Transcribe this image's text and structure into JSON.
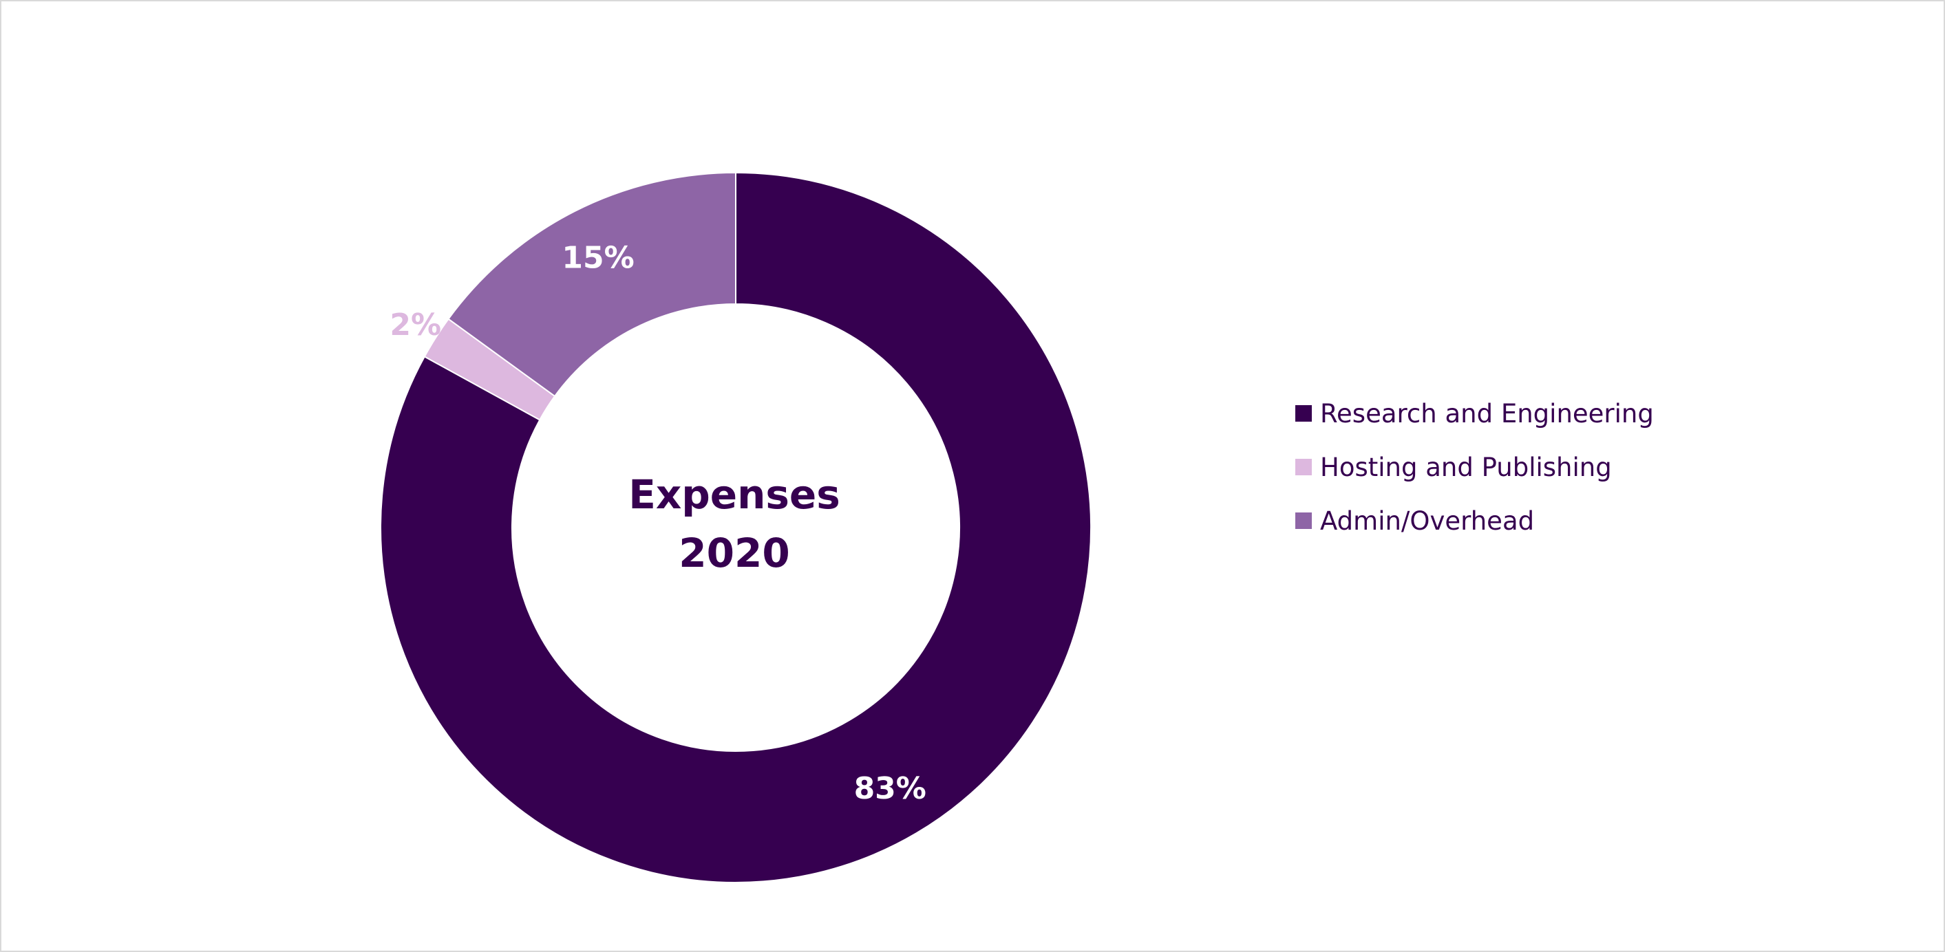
{
  "colors": {
    "text": "#360050",
    "research": "#360050",
    "hosting": "#ddb8df",
    "admin": "#8e65a6"
  },
  "chart_data": {
    "type": "pie",
    "style": "donut",
    "title_lines": [
      "Expenses",
      "2020"
    ],
    "slices": [
      {
        "name": "Research and Engineering",
        "value": 83,
        "label": "83%",
        "color": "#360050",
        "label_color": "#ffffff"
      },
      {
        "name": "Hosting and Publishing",
        "value": 2,
        "label": "2%",
        "color": "#ddb8df",
        "label_color": "#ddb8df"
      },
      {
        "name": "Admin/Overhead",
        "value": 15,
        "label": "15%",
        "color": "#8e65a6",
        "label_color": "#ffffff"
      }
    ],
    "legend_position": "right"
  }
}
